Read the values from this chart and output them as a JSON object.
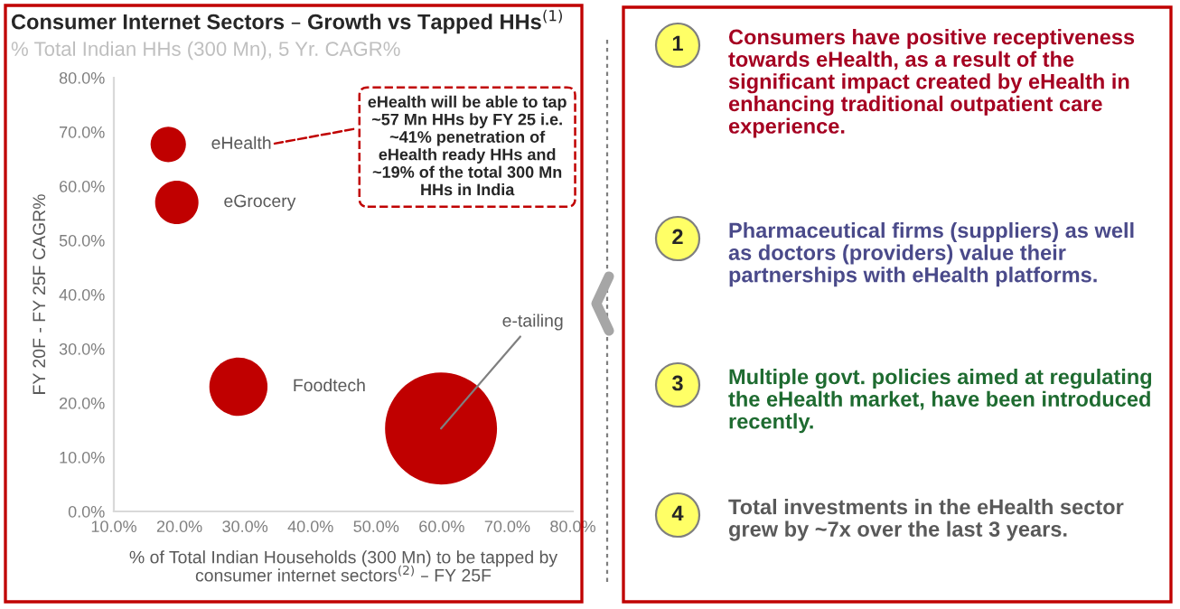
{
  "chart_data": [
    {
      "type": "bubble",
      "title": "Consumer Internet Sectors – Growth vs Tapped HHs$^{(1)}$",
      "subtitle": "% Total Indian HHs (300 Mn), 5 Yr. CAGR%",
      "xlabel": "% of Total Indian Households (300 Mn) to be tapped by consumer internet sectors$^{(2)}$ – FY 25F",
      "ylabel": "FY 20F - FY 25F CAGR%",
      "series": [
        {
          "name": "eHealth",
          "color": "#c00000",
          "x": [
            18.3
          ],
          "values": [
            67.7
          ],
          "sizes": [
            0.1
          ]
        },
        {
          "name": "eGrocery",
          "color": "#c00000",
          "x": [
            19.6
          ],
          "values": [
            57
          ],
          "sizes": [
            0.15
          ]
        },
        {
          "name": "Foodtech",
          "color": "#c00000",
          "x": [
            29
          ],
          "values": [
            23
          ],
          "sizes": [
            0.27
          ]
        },
        {
          "name": "e-tailing",
          "color": "#c00000",
          "x": [
            59.9
          ],
          "values": [
            15.3
          ],
          "sizes": [
            1
          ]
        }
      ],
      "xlim": [
        10,
        80
      ],
      "ylim": [
        0,
        80
      ],
      "xticks": [
        {
          "value": 10,
          "label": "10.0%"
        },
        {
          "value": 20,
          "label": "20.0%"
        },
        {
          "value": 30,
          "label": "30.0%"
        },
        {
          "value": 40,
          "label": "40.0%"
        },
        {
          "value": 50,
          "label": "50.0%"
        },
        {
          "value": 60,
          "label": "60.0%"
        },
        {
          "value": 70,
          "label": "70.0%"
        },
        {
          "value": 80,
          "label": "80.0%"
        }
      ],
      "yticks": [
        {
          "value": 0,
          "label": "0.0%"
        },
        {
          "value": 10,
          "label": "10.0%"
        },
        {
          "value": 20,
          "label": "20.0%"
        },
        {
          "value": 30,
          "label": "30.0%"
        },
        {
          "value": 40,
          "label": "40.0%"
        },
        {
          "value": 50,
          "label": "50.0%"
        },
        {
          "value": 60,
          "label": "60.0%"
        },
        {
          "value": 70,
          "label": "70.0%"
        },
        {
          "value": 80,
          "label": "80.0%"
        }
      ],
      "annotations": [
        "eHealth will be able to tap ~57 Mn HHs by FY 25 i.e. ~41% penetration of eHealth ready HHs and ~19% of the total 300 Mn HHs in India"
      ]
    },
    {
      "type": "other",
      "categories": [
        "1",
        "2",
        "3",
        "4"
      ],
      "annotations": [
        "Consumers have positive receptiveness towards eHealth, as a result of the significant impact created by eHealth in enhancing traditional outpatient care experience.",
        "Pharmaceutical firms (suppliers) as well as doctors (providers) value their partnerships with eHealth platforms.",
        "Multiple govt. policies aimed at regulating the eHealth market, have been introduced recently.",
        "Total investments in the eHealth sector grew by ~7x over the last 3 years."
      ]
    }
  ]
}
